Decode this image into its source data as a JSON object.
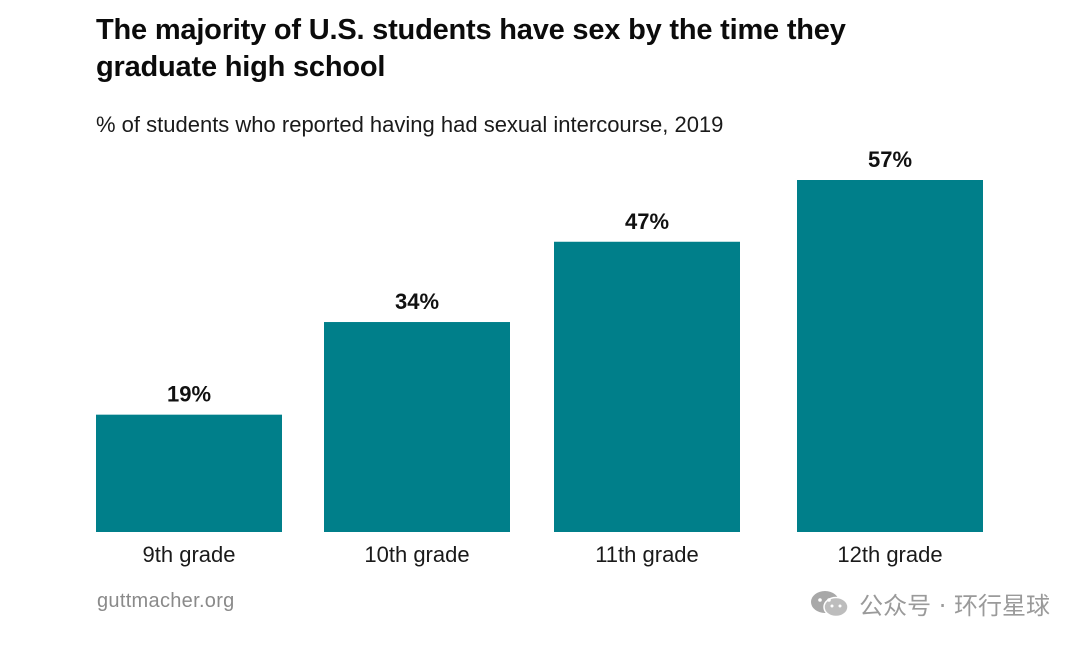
{
  "chart_data": {
    "type": "bar",
    "title_lines": [
      "The majority of U.S. students have sex by the time they",
      "graduate high school"
    ],
    "subtitle": "% of students who reported having had sexual intercourse, 2019",
    "categories": [
      "9th grade",
      "10th grade",
      "11th grade",
      "12th grade"
    ],
    "values": [
      19,
      34,
      47,
      57
    ],
    "value_labels": [
      "19%",
      "34%",
      "47%",
      "57%"
    ],
    "xlabel": "",
    "ylabel": "",
    "ylim": [
      0,
      57
    ],
    "grid": false,
    "bar_color": "#007f8a"
  },
  "footer": {
    "source": "guttmacher.org",
    "watermark_text": "公众号 · 环行星球",
    "watermark_icon": "wechat-icon"
  }
}
